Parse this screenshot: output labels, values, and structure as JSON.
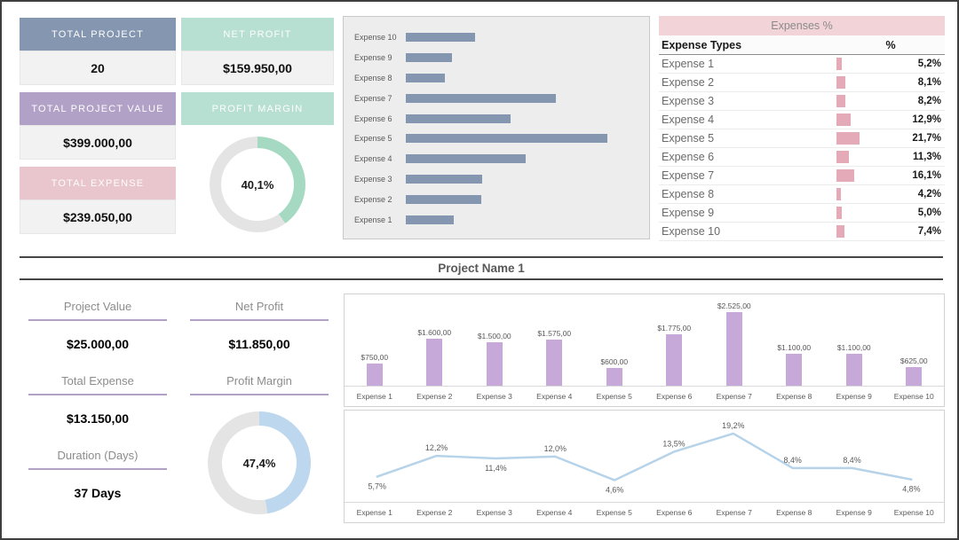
{
  "summary": {
    "total_project": {
      "label": "TOTAL PROJECT",
      "value": "20"
    },
    "total_project_value": {
      "label": "TOTAL PROJECT VALUE",
      "value": "$399.000,00"
    },
    "total_expense": {
      "label": "TOTAL EXPENSE",
      "value": "$239.050,00"
    },
    "net_profit": {
      "label": "NET PROFIT",
      "value": "$159.950,00"
    },
    "profit_margin": {
      "label": "PROFIT MARGIN"
    }
  },
  "expense_table": {
    "title": "Expenses %",
    "columns": {
      "type": "Expense Types",
      "pct": "%"
    },
    "rows": [
      {
        "name": "Expense 1",
        "pct": 5.2,
        "pct_label": "5,2%"
      },
      {
        "name": "Expense 2",
        "pct": 8.1,
        "pct_label": "8,1%"
      },
      {
        "name": "Expense 3",
        "pct": 8.2,
        "pct_label": "8,2%"
      },
      {
        "name": "Expense 4",
        "pct": 12.9,
        "pct_label": "12,9%"
      },
      {
        "name": "Expense 5",
        "pct": 21.7,
        "pct_label": "21,7%"
      },
      {
        "name": "Expense 6",
        "pct": 11.3,
        "pct_label": "11,3%"
      },
      {
        "name": "Expense 7",
        "pct": 16.1,
        "pct_label": "16,1%"
      },
      {
        "name": "Expense 8",
        "pct": 4.2,
        "pct_label": "4,2%"
      },
      {
        "name": "Expense 9",
        "pct": 5.0,
        "pct_label": "5,0%"
      },
      {
        "name": "Expense 10",
        "pct": 7.4,
        "pct_label": "7,4%"
      }
    ]
  },
  "project_section": {
    "title": "Project Name 1",
    "project_value": {
      "label": "Project Value",
      "value": "$25.000,00"
    },
    "total_expense": {
      "label": "Total Expense",
      "value": "$13.150,00"
    },
    "duration": {
      "label": "Duration (Days)",
      "value": "37 Days"
    },
    "net_profit": {
      "label": "Net Profit",
      "value": "$11.850,00"
    },
    "profit_margin": {
      "label": "Profit Margin"
    }
  },
  "colors": {
    "slate": "#8496b0",
    "purple": "#b2a1c7",
    "pink": "#e9c6cd",
    "mint": "#b8e0d2",
    "table_pink": "#f2d4d8",
    "bar_pink": "#e5aab7"
  },
  "chart_data": [
    {
      "id": "expenses-distribution-bar",
      "type": "bar",
      "orientation": "horizontal",
      "categories": [
        "Expense 1",
        "Expense 2",
        "Expense 3",
        "Expense 4",
        "Expense 5",
        "Expense 6",
        "Expense 7",
        "Expense 8",
        "Expense 9",
        "Expense 10"
      ],
      "values": [
        5.2,
        8.1,
        8.2,
        12.9,
        21.7,
        11.3,
        16.1,
        4.2,
        5.0,
        7.4
      ],
      "xlim": [
        0,
        25
      ],
      "bar_color": "#8496b0",
      "layout": "Expense 10 on top, Expense 1 at bottom, gray plot background, no value labels"
    },
    {
      "id": "project-expenses-bar",
      "type": "bar",
      "categories": [
        "Expense 1",
        "Expense 2",
        "Expense 3",
        "Expense 4",
        "Expense 5",
        "Expense 6",
        "Expense 7",
        "Expense 8",
        "Expense 9",
        "Expense 10"
      ],
      "values": [
        750,
        1600,
        1500,
        1575,
        600,
        1775,
        2525,
        1100,
        1100,
        625
      ],
      "value_labels": [
        "$750,00",
        "$1.600,00",
        "$1.500,00",
        "$1.575,00",
        "$600,00",
        "$1.775,00",
        "$2.525,00",
        "$1.100,00",
        "$1.100,00",
        "$625,00"
      ],
      "ylim": [
        0,
        2800
      ],
      "bar_color": "#c7a9d9"
    },
    {
      "id": "project-expenses-line",
      "type": "line",
      "categories": [
        "Expense 1",
        "Expense 2",
        "Expense 3",
        "Expense 4",
        "Expense 5",
        "Expense 6",
        "Expense 7",
        "Expense 8",
        "Expense 9",
        "Expense 10"
      ],
      "values": [
        5.7,
        12.2,
        11.4,
        12.0,
        4.6,
        13.5,
        19.2,
        8.4,
        8.4,
        4.8
      ],
      "value_labels": [
        "5,7%",
        "12,2%",
        "11,4%",
        "12,0%",
        "4,6%",
        "13,5%",
        "19,2%",
        "8,4%",
        "8,4%",
        "4,8%"
      ],
      "label_positions": [
        "below",
        "above",
        "below",
        "above",
        "below",
        "above",
        "above",
        "above",
        "above",
        "below"
      ],
      "ylim": [
        0,
        22
      ],
      "line_color": "#b6d3e9"
    },
    {
      "id": "profit-margin-total-donut",
      "type": "pie",
      "value": 40.1,
      "label": "40,1%",
      "color": "#a6d9c2",
      "track_color": "#e4e4e4"
    },
    {
      "id": "project-profit-margin-donut",
      "type": "pie",
      "value": 47.4,
      "label": "47,4%",
      "color": "#bdd7ee",
      "track_color": "#e4e4e4"
    }
  ]
}
